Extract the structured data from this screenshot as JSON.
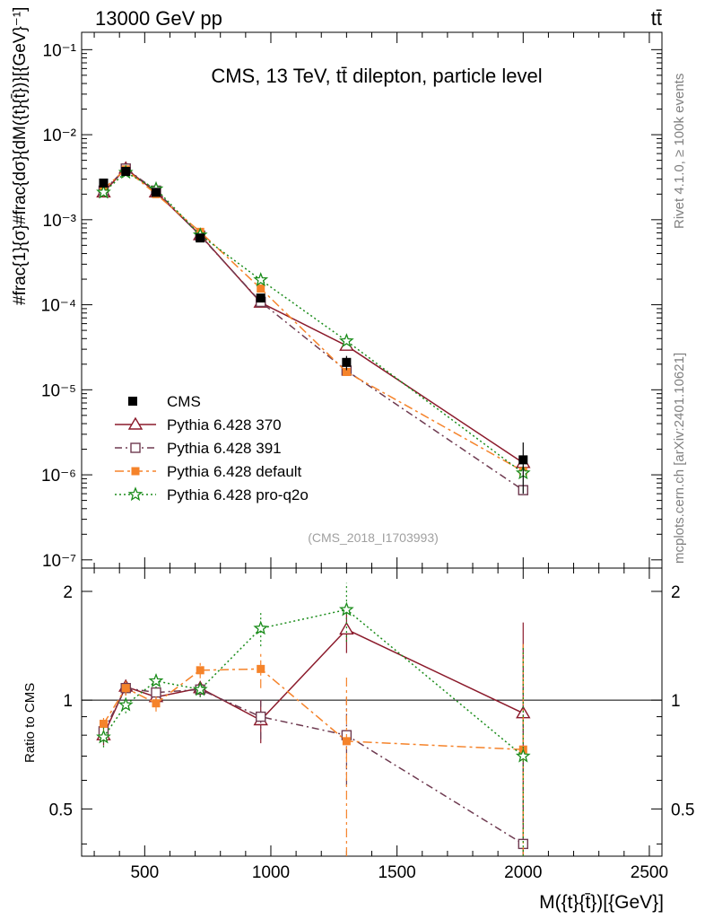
{
  "header": {
    "left": "13000 GeV pp",
    "right": "tt̄"
  },
  "side_labels": {
    "rivet": "Rivet 4.1.0, ≥ 100k events",
    "source": "mcplots.cern.ch [arXiv:2401.10621]"
  },
  "chart_data": {
    "type": "line",
    "title": "CMS, 13 TeV, tt̄ dilepton, particle level",
    "analysis_tag": "(CMS_2018_I1703993)",
    "xlabel": "M({t}{t̄})[{GeV}]",
    "ylabel": "#frac{1}{σ}#frac{dσ}{dM({t}{t̄})}[{GeV}⁻¹]",
    "ratio_ylabel": "Ratio to CMS",
    "xlim": [
      250,
      2550
    ],
    "ylim": [
      8e-08,
      0.16
    ],
    "ratio_ylim": [
      0.37,
      2.32
    ],
    "x_ticks": [
      "500",
      "1000",
      "1500",
      "2000",
      "2500"
    ],
    "y_ticks": [
      "10⁻⁷",
      "10⁻⁶",
      "10⁻⁵",
      "10⁻⁴",
      "10⁻³",
      "10⁻²",
      "10⁻¹"
    ],
    "ratio_ticks": [
      "0.5",
      "1",
      "2"
    ],
    "x": [
      337,
      425,
      545,
      720,
      960,
      1300,
      2000
    ],
    "series": [
      {
        "name": "CMS",
        "style": "data",
        "color": "#000000",
        "values": [
          0.0027,
          0.0037,
          0.0021,
          0.00061,
          0.00012,
          2.1e-05,
          1.5e-06
        ],
        "errors": [
          0.0002,
          0.00025,
          0.00015,
          5e-05,
          1.2e-05,
          4e-06,
          9e-07
        ],
        "ratio": [
          1,
          1,
          1,
          1,
          1,
          1,
          1
        ]
      },
      {
        "name": "Pythia 6.428 370",
        "style": "solid",
        "color": "#8b1a2b",
        "marker": "triangle-open",
        "values": [
          0.0021,
          0.004,
          0.0021,
          0.00066,
          0.000106,
          3.3e-05,
          1.38e-06
        ],
        "ratio": [
          0.8,
          1.09,
          1.02,
          1.08,
          0.88,
          1.57,
          0.92
        ],
        "ratio_err": [
          0.05,
          0.05,
          0.05,
          0.05,
          0.12,
          0.22,
          0.72
        ]
      },
      {
        "name": "Pythia 6.428 391",
        "style": "dashdot",
        "color": "#6e3a50",
        "marker": "square-open",
        "values": [
          0.0022,
          0.004,
          0.0022,
          0.00065,
          0.000108,
          1.68e-05,
          6.6e-07
        ],
        "ratio": [
          0.82,
          1.08,
          1.05,
          1.07,
          0.9,
          0.8,
          0.4
        ],
        "ratio_err": [
          0.05,
          0.05,
          0.05,
          0.05,
          0.12,
          0.22,
          0.7
        ]
      },
      {
        "name": "Pythia 6.428 default",
        "style": "dashdot-long",
        "color": "#f5832a",
        "marker": "square-filled",
        "values": [
          0.0023,
          0.0039,
          0.002,
          0.00072,
          0.000155,
          1.62e-05,
          1.1e-06
        ],
        "ratio": [
          0.86,
          1.08,
          0.98,
          1.21,
          1.22,
          0.77,
          0.73
        ],
        "ratio_err": [
          0.05,
          0.05,
          0.05,
          0.06,
          0.14,
          0.4,
          0.7
        ]
      },
      {
        "name": "Pythia 6.428 pro-q2o",
        "style": "dotted",
        "color": "#1a8c1a",
        "marker": "star",
        "values": [
          0.0021,
          0.0036,
          0.0023,
          0.00066,
          0.000196,
          3.75e-05,
          1.05e-06
        ],
        "ratio": [
          0.79,
          0.97,
          1.13,
          1.07,
          1.58,
          1.78,
          0.7
        ],
        "ratio_err": [
          0.05,
          0.05,
          0.05,
          0.05,
          0.17,
          0.33,
          0.7
        ]
      }
    ],
    "legend_position": "lower-left of main panel"
  }
}
